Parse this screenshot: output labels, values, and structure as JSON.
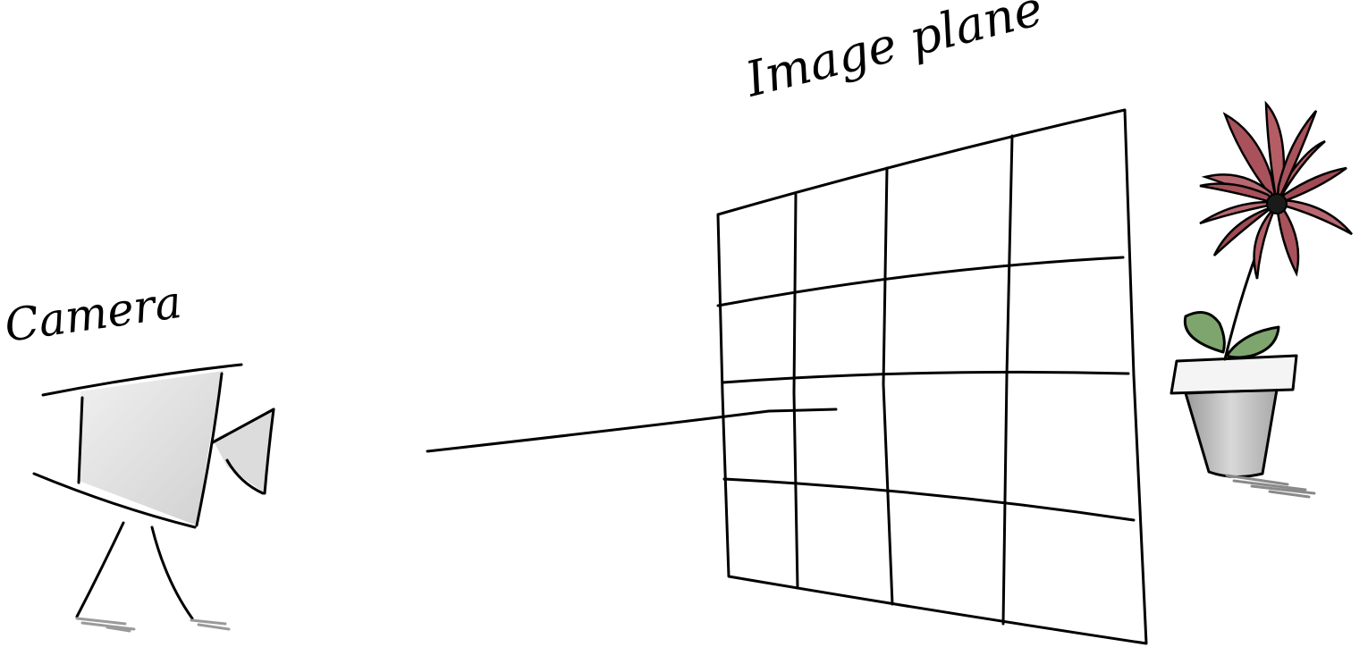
{
  "labels": {
    "image_plane": "Image plane",
    "camera": "Camera"
  },
  "colors": {
    "ink": "#000000",
    "camera_fill": "#e4e4e4",
    "pot_rim": "#f2f2f2",
    "pot_body": "#c9c9c9",
    "petal": "#a7555c",
    "petal_light": "#d69ba0",
    "leaf": "#7aa06b",
    "flower_center": "#1a1a1a",
    "shadow": "#9a9a9a"
  },
  "grid": {
    "columns": 4,
    "rows": 4
  }
}
